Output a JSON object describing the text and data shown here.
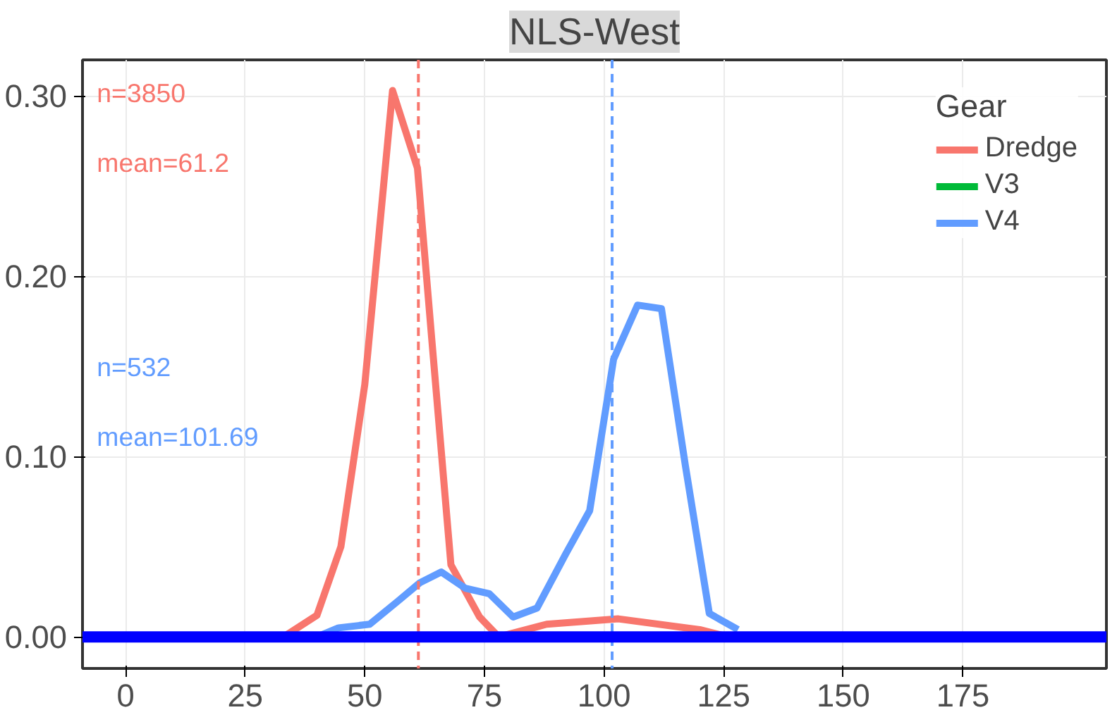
{
  "chart_data": {
    "type": "line",
    "title": "NLS-West",
    "legend_title": "Gear",
    "legend": "top right",
    "grid": true,
    "line_style": "solid",
    "marker": "none",
    "xlim": [
      -9,
      205
    ],
    "ylim": [
      -0.0175,
      0.32
    ],
    "xticks": [
      0,
      25,
      50,
      75,
      100,
      125,
      150,
      175
    ],
    "yticks": [
      {
        "value": 0,
        "label": "0.00"
      },
      {
        "value": 0.1,
        "label": "0.10"
      },
      {
        "value": 0.2,
        "label": "0.20"
      },
      {
        "value": 0.3,
        "label": "0.30"
      }
    ],
    "series": [
      {
        "name": "Dredge",
        "color": "#f8766d",
        "x": [
          33,
          40,
          45,
          50,
          55.8,
          61,
          64,
          68,
          74,
          78,
          88,
          103,
          120,
          126
        ],
        "values": [
          0,
          0.012,
          0.05,
          0.14,
          0.303,
          0.26,
          0.165,
          0.04,
          0.011,
          0,
          0.007,
          0.01,
          0.004,
          0
        ]
      },
      {
        "name": "V3",
        "color": "#00ba38"
      },
      {
        "name": "V4",
        "color": "#619cff",
        "x": [
          40,
          44.5,
          51,
          57,
          61.5,
          66,
          71,
          76,
          81,
          86,
          92,
          97,
          102,
          107,
          112,
          117,
          122,
          128
        ],
        "values": [
          0,
          0.005,
          0.007,
          0.02,
          0.03,
          0.036,
          0.027,
          0.024,
          0.011,
          0.016,
          0.046,
          0.07,
          0.154,
          0.184,
          0.182,
          0.095,
          0.013,
          0.004
        ]
      }
    ],
    "ref_lines": [
      {
        "axis": "x",
        "value": 61.2,
        "color": "#f8766d",
        "line_style": "dashed"
      },
      {
        "axis": "x",
        "value": 101.69,
        "color": "#619cff",
        "line_style": "dashed"
      },
      {
        "axis": "y",
        "value": 0,
        "color": "#0000ff",
        "line_style": "solid"
      }
    ],
    "annotations": [
      "n=3850",
      "mean=61.2",
      "n=532",
      "mean=101.69"
    ]
  }
}
